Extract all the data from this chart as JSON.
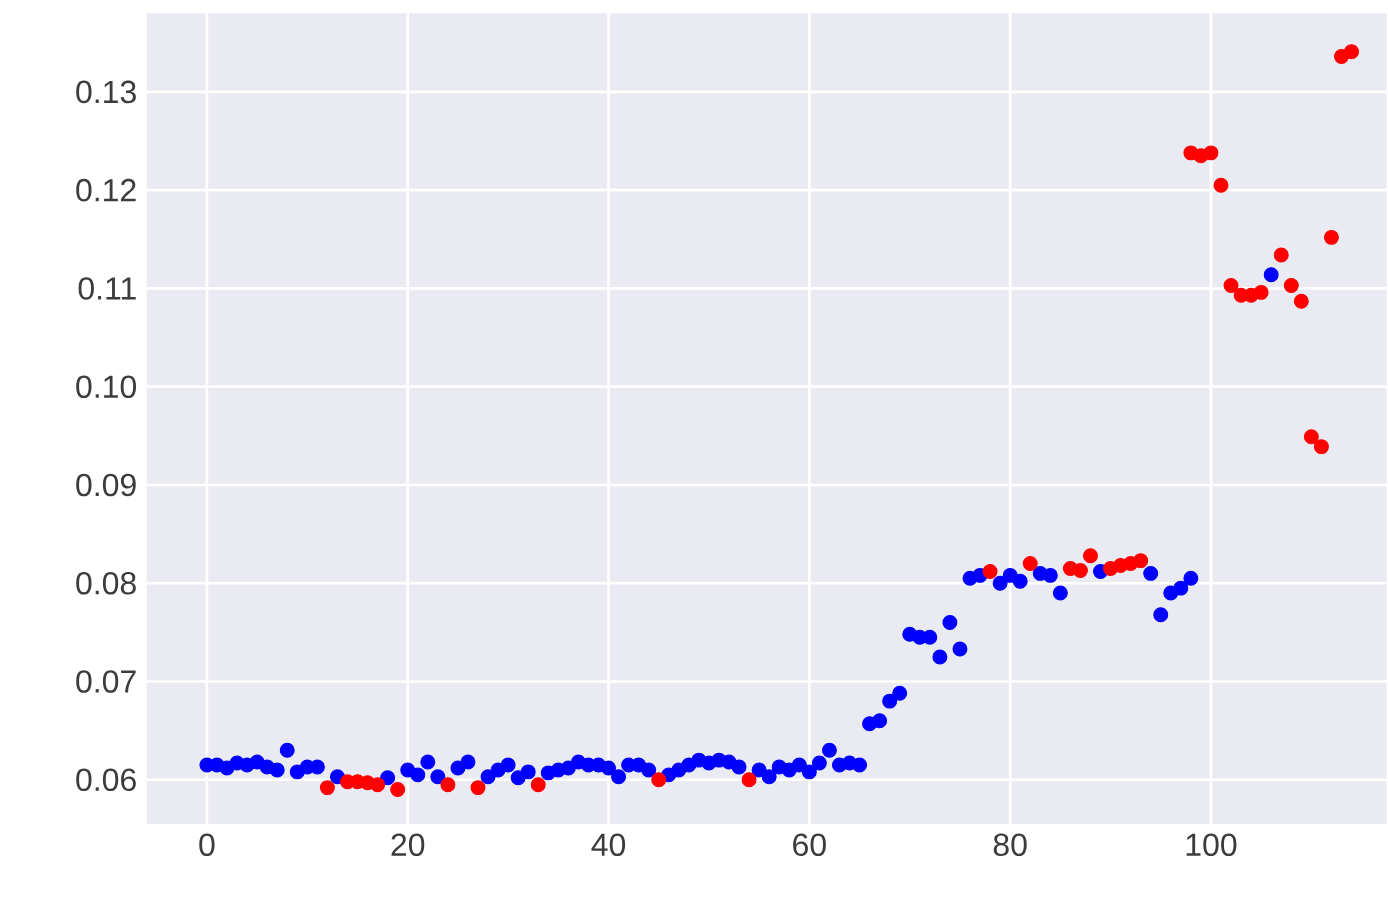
{
  "chart_data": {
    "type": "scatter",
    "marker": "circle",
    "grid": true,
    "xlim": [
      -6,
      117.5
    ],
    "ylim": [
      0.0555,
      0.138
    ],
    "xticks": [
      0,
      20,
      40,
      60,
      80,
      100
    ],
    "yticks": [
      0.06,
      0.07,
      0.08,
      0.09,
      {
        "value": 0.1,
        "label": "0.10"
      },
      0.11,
      0.12,
      0.13
    ],
    "series": [
      {
        "color": "#0000ff",
        "x": [
          0,
          1,
          2,
          3,
          4,
          5,
          6,
          7,
          8,
          9,
          10,
          11,
          13,
          18,
          20,
          21,
          22,
          23,
          25,
          26,
          28,
          29,
          30,
          31,
          32,
          34,
          35,
          36,
          37,
          38,
          39,
          40,
          41,
          42,
          43,
          44,
          46,
          47,
          48,
          49,
          50,
          51,
          52,
          53,
          55,
          56,
          57,
          58,
          59,
          60,
          61,
          62,
          63,
          64,
          65,
          66,
          67,
          68,
          69,
          70,
          71,
          72,
          73,
          74,
          75,
          76,
          77,
          79,
          80,
          81,
          83,
          84,
          85,
          89,
          94,
          95,
          96,
          97,
          98,
          106
        ],
        "values": [
          0.0615,
          0.0615,
          0.0612,
          0.0617,
          0.0615,
          0.0618,
          0.0613,
          0.061,
          0.063,
          0.0608,
          0.0613,
          0.0613,
          0.0603,
          0.0602,
          0.061,
          0.0605,
          0.0618,
          0.0603,
          0.0612,
          0.0618,
          0.0603,
          0.061,
          0.0615,
          0.0602,
          0.0608,
          0.0607,
          0.061,
          0.0612,
          0.0618,
          0.0615,
          0.0615,
          0.0612,
          0.0603,
          0.0615,
          0.0615,
          0.061,
          0.0605,
          0.061,
          0.0615,
          0.062,
          0.0617,
          0.062,
          0.0618,
          0.0613,
          0.061,
          0.0603,
          0.0613,
          0.061,
          0.0615,
          0.0608,
          0.0617,
          0.063,
          0.0615,
          0.0617,
          0.0615,
          0.0657,
          0.066,
          0.068,
          0.0688,
          0.0748,
          0.0745,
          0.0745,
          0.0725,
          0.076,
          0.0733,
          0.0805,
          0.0808,
          0.08,
          0.0808,
          0.0802,
          0.081,
          0.0808,
          0.079,
          0.0812,
          0.081,
          0.0768,
          0.079,
          0.0795,
          0.0805,
          0.1114
        ]
      },
      {
        "color": "#ff0000",
        "x": [
          12,
          14,
          15,
          16,
          17,
          19,
          24,
          27,
          33,
          45,
          54,
          78,
          82,
          86,
          87,
          88,
          90,
          91,
          92,
          93,
          98,
          99,
          100,
          101,
          102,
          103,
          104,
          105,
          107,
          108,
          109,
          110,
          111,
          112,
          113,
          114
        ],
        "values": [
          0.0592,
          0.0598,
          0.0598,
          0.0597,
          0.0595,
          0.059,
          0.0595,
          0.0592,
          0.0595,
          0.06,
          0.06,
          0.0812,
          0.082,
          0.0815,
          0.0813,
          0.0828,
          0.0815,
          0.0818,
          0.082,
          0.0823,
          0.1238,
          0.1235,
          0.1238,
          0.1205,
          0.1103,
          0.1093,
          0.1093,
          0.1096,
          0.1134,
          0.1103,
          0.1087,
          0.0949,
          0.0939,
          0.1152,
          0.1336,
          0.1341
        ]
      }
    ]
  }
}
